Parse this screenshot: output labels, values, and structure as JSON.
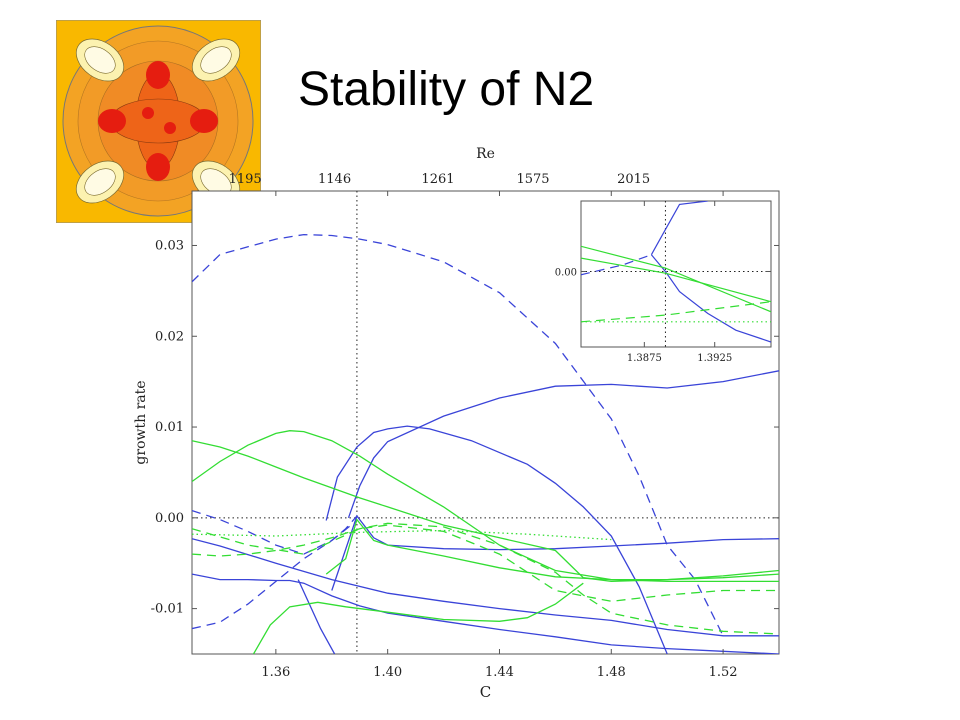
{
  "slide": {
    "title": "Stability of N2"
  },
  "thumbnail": {
    "description": "",
    "colors": {
      "background": "#f9b800",
      "inner": "#f07a1e",
      "hot": "#e51d10",
      "cool": "#fbfac8"
    }
  },
  "chart_data": {
    "type": "line",
    "title": "",
    "xlabel": "C",
    "ylabel": "growth rate",
    "top_axis_label": "Re",
    "xlim": [
      1.33,
      1.54
    ],
    "ylim": [
      -0.015,
      0.036
    ],
    "xticks": [
      1.36,
      1.4,
      1.44,
      1.48,
      1.52
    ],
    "xtick_labels": [
      "1.36",
      "1.40",
      "1.44",
      "1.48",
      "1.52"
    ],
    "yticks": [
      -0.01,
      0.0,
      0.01,
      0.02,
      0.03
    ],
    "ytick_labels": [
      "-0.01",
      "0.00",
      "0.01",
      "0.02",
      "0.03"
    ],
    "top_ticks": [
      1.349,
      1.381,
      1.418,
      1.452,
      1.488
    ],
    "top_tick_labels": [
      "1195",
      "1146",
      "1261",
      "1575",
      "2015"
    ],
    "vertical_ref_line": 1.389,
    "horizontal_ref_line": 0.0,
    "grid": false,
    "colors": {
      "blue": "#3a44d8",
      "green": "#33dd33"
    },
    "series": [
      {
        "color": "blue",
        "style": "dashed",
        "x": [
          1.33,
          1.34,
          1.36,
          1.37,
          1.38,
          1.39,
          1.4,
          1.42,
          1.44,
          1.46,
          1.48,
          1.49,
          1.5,
          1.51,
          1.52
        ],
        "y": [
          0.026,
          0.029,
          0.0307,
          0.0312,
          0.0311,
          0.0307,
          0.0301,
          0.0282,
          0.0248,
          0.0192,
          0.0109,
          0.0046,
          -0.003,
          -0.0068,
          -0.013
        ]
      },
      {
        "color": "blue",
        "style": "solid",
        "x": [
          1.386,
          1.39,
          1.395,
          1.4,
          1.42,
          1.44,
          1.46,
          1.48,
          1.5,
          1.52,
          1.54
        ],
        "y": [
          0.0,
          0.0035,
          0.0066,
          0.0084,
          0.0112,
          0.0132,
          0.0145,
          0.0147,
          0.0143,
          0.015,
          0.0162
        ]
      },
      {
        "color": "blue",
        "style": "solid",
        "x": [
          1.378,
          1.382,
          1.389,
          1.395,
          1.4,
          1.407,
          1.415,
          1.43,
          1.45,
          1.46,
          1.47,
          1.48,
          1.49,
          1.5
        ],
        "y": [
          -0.0003,
          0.0045,
          0.0078,
          0.0094,
          0.0098,
          0.0101,
          0.0098,
          0.0085,
          0.0059,
          0.0038,
          0.0012,
          -0.002,
          -0.0076,
          -0.015
        ]
      },
      {
        "color": "blue",
        "style": "solid",
        "x": [
          1.38,
          1.389,
          1.395,
          1.4,
          1.42,
          1.44,
          1.46,
          1.48,
          1.5,
          1.52,
          1.54
        ],
        "y": [
          -0.008,
          0.0002,
          -0.0022,
          -0.003,
          -0.0034,
          -0.0035,
          -0.0034,
          -0.0031,
          -0.0028,
          -0.0024,
          -0.0023
        ]
      },
      {
        "color": "blue",
        "style": "solid",
        "x": [
          1.33,
          1.34,
          1.36,
          1.38,
          1.4,
          1.42,
          1.44,
          1.46,
          1.48,
          1.5,
          1.52,
          1.54
        ],
        "y": [
          -0.0023,
          -0.0031,
          -0.005,
          -0.0068,
          -0.0083,
          -0.0092,
          -0.01,
          -0.0107,
          -0.0113,
          -0.0123,
          -0.013,
          -0.013
        ]
      },
      {
        "color": "blue",
        "style": "solid",
        "x": [
          1.33,
          1.34,
          1.35,
          1.36,
          1.365,
          1.37,
          1.38,
          1.39,
          1.4,
          1.42,
          1.44,
          1.46,
          1.48,
          1.5,
          1.52,
          1.54
        ],
        "y": [
          -0.0062,
          -0.0068,
          -0.0068,
          -0.0069,
          -0.0069,
          -0.0072,
          -0.0086,
          -0.0097,
          -0.0105,
          -0.0114,
          -0.0123,
          -0.0131,
          -0.014,
          -0.0144,
          -0.0147,
          -0.015
        ]
      },
      {
        "color": "blue",
        "style": "solid",
        "x": [
          1.368,
          1.372,
          1.376,
          1.381
        ],
        "y": [
          -0.0068,
          -0.0095,
          -0.0122,
          -0.015
        ]
      },
      {
        "color": "blue",
        "style": "dashed",
        "x": [
          1.33,
          1.34,
          1.35,
          1.36,
          1.37,
          1.38,
          1.385,
          1.389
        ],
        "y": [
          -0.0122,
          -0.0115,
          -0.0095,
          -0.007,
          -0.0045,
          -0.0025,
          -0.0012,
          0.0002
        ]
      },
      {
        "color": "blue",
        "style": "dashed",
        "x": [
          1.33,
          1.34,
          1.35,
          1.36,
          1.37,
          1.38,
          1.389
        ],
        "y": [
          0.0008,
          -0.0002,
          -0.0015,
          -0.003,
          -0.004,
          -0.0025,
          -0.0003
        ]
      },
      {
        "color": "green",
        "style": "solid",
        "x": [
          1.33,
          1.34,
          1.35,
          1.36,
          1.37,
          1.38,
          1.39,
          1.4,
          1.42,
          1.44,
          1.46,
          1.47,
          1.48,
          1.5,
          1.52,
          1.54
        ],
        "y": [
          0.0085,
          0.0078,
          0.0068,
          0.0056,
          0.0044,
          0.0033,
          0.0022,
          0.0012,
          -0.0008,
          -0.0022,
          -0.0036,
          -0.0066,
          -0.007,
          -0.0068,
          -0.0064,
          -0.0058
        ]
      },
      {
        "color": "green",
        "style": "solid",
        "x": [
          1.33,
          1.34,
          1.35,
          1.36,
          1.365,
          1.37,
          1.38,
          1.39,
          1.4,
          1.42,
          1.44,
          1.46,
          1.48,
          1.5,
          1.52,
          1.54
        ],
        "y": [
          0.004,
          0.0062,
          0.008,
          0.0093,
          0.0096,
          0.0095,
          0.0085,
          0.0068,
          0.0048,
          0.0012,
          -0.003,
          -0.0058,
          -0.0068,
          -0.007,
          -0.007,
          -0.007
        ]
      },
      {
        "color": "green",
        "style": "solid",
        "x": [
          1.378,
          1.385,
          1.389,
          1.395,
          1.4,
          1.42,
          1.44,
          1.46,
          1.48,
          1.5,
          1.52,
          1.54
        ],
        "y": [
          -0.0062,
          -0.0045,
          -0.0002,
          -0.0025,
          -0.003,
          -0.0042,
          -0.0055,
          -0.0065,
          -0.0068,
          -0.0068,
          -0.0066,
          -0.0062
        ]
      },
      {
        "color": "green",
        "style": "solid",
        "x": [
          1.352,
          1.358,
          1.365,
          1.375,
          1.385,
          1.4,
          1.42,
          1.44,
          1.45,
          1.46,
          1.47
        ],
        "y": [
          -0.015,
          -0.0118,
          -0.0098,
          -0.0093,
          -0.0098,
          -0.0104,
          -0.0112,
          -0.0114,
          -0.011,
          -0.0095,
          -0.0072
        ]
      },
      {
        "color": "green",
        "style": "dashed",
        "x": [
          1.33,
          1.34,
          1.35,
          1.36,
          1.37,
          1.38,
          1.39,
          1.4,
          1.42,
          1.44,
          1.46,
          1.47,
          1.48,
          1.5,
          1.52,
          1.54
        ],
        "y": [
          -0.004,
          -0.0042,
          -0.004,
          -0.0036,
          -0.003,
          -0.0022,
          -0.0012,
          -0.0006,
          -0.001,
          -0.003,
          -0.006,
          -0.0085,
          -0.0105,
          -0.0118,
          -0.0125,
          -0.0128
        ]
      },
      {
        "color": "green",
        "style": "dashed",
        "x": [
          1.33,
          1.35,
          1.37,
          1.39,
          1.4,
          1.42,
          1.44,
          1.46,
          1.48,
          1.5,
          1.52,
          1.54
        ],
        "y": [
          -0.0012,
          -0.003,
          -0.004,
          -0.0012,
          -0.0008,
          -0.0015,
          -0.004,
          -0.008,
          -0.0092,
          -0.0085,
          -0.008,
          -0.008
        ]
      },
      {
        "color": "green",
        "style": "dotted",
        "x": [
          1.33,
          1.36,
          1.39,
          1.42,
          1.45,
          1.48
        ],
        "y": [
          -0.0018,
          -0.002,
          -0.0016,
          -0.0014,
          -0.0018,
          -0.0024
        ]
      }
    ],
    "inset": {
      "xlim": [
        1.383,
        1.3965
      ],
      "ylim": [
        -0.0045,
        0.0042
      ],
      "xticks": [
        1.3875,
        1.3925
      ],
      "xtick_labels": [
        "1.3875",
        "1.3925"
      ],
      "yticks": [
        0.0
      ],
      "ytick_labels": [
        "0.00"
      ],
      "vertical_ref_line": 1.389,
      "horizontal_ref_line": 0.0,
      "series": [
        {
          "color": "blue",
          "style": "dashed",
          "x": [
            1.383,
            1.386,
            1.388
          ],
          "y": [
            -0.0002,
            0.0004,
            0.001
          ]
        },
        {
          "color": "blue",
          "style": "solid",
          "x": [
            1.388,
            1.3888,
            1.39,
            1.392
          ],
          "y": [
            0.001,
            0.0022,
            0.004,
            0.0042
          ]
        },
        {
          "color": "blue",
          "style": "solid",
          "x": [
            1.388,
            1.389,
            1.39,
            1.392,
            1.394,
            1.3965
          ],
          "y": [
            0.001,
            0.0,
            -0.0012,
            -0.0025,
            -0.0035,
            -0.0042
          ]
        },
        {
          "color": "green",
          "style": "solid",
          "x": [
            1.383,
            1.389,
            1.3965
          ],
          "y": [
            0.0015,
            0.0002,
            -0.0024
          ]
        },
        {
          "color": "green",
          "style": "solid",
          "x": [
            1.383,
            1.389,
            1.3965
          ],
          "y": [
            0.0008,
            -0.0001,
            -0.0018
          ]
        },
        {
          "color": "green",
          "style": "dashed",
          "x": [
            1.383,
            1.389,
            1.3965
          ],
          "y": [
            -0.003,
            -0.0026,
            -0.0018
          ]
        },
        {
          "color": "green",
          "style": "dotted",
          "x": [
            1.383,
            1.3965
          ],
          "y": [
            -0.003,
            -0.003
          ]
        }
      ]
    }
  }
}
